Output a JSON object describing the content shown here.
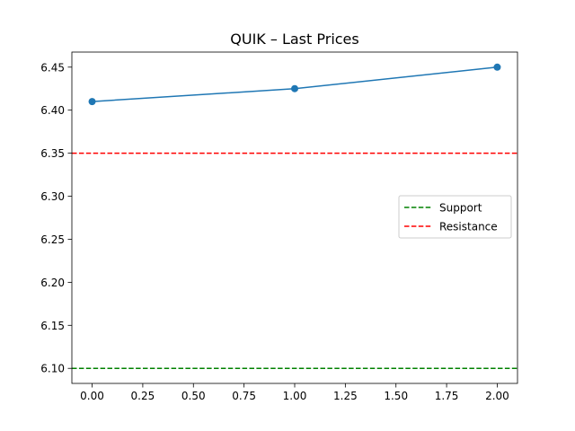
{
  "chart_data": {
    "type": "line",
    "title": "QUIK – Last Prices",
    "xlabel": "",
    "ylabel": "",
    "xlim": [
      -0.1,
      2.1
    ],
    "ylim": [
      6.0825,
      6.4675
    ],
    "x_ticks": [
      "0.00",
      "0.25",
      "0.50",
      "0.75",
      "1.00",
      "1.25",
      "1.50",
      "1.75",
      "2.00"
    ],
    "x_tick_values": [
      0,
      0.25,
      0.5,
      0.75,
      1.0,
      1.25,
      1.5,
      1.75,
      2.0
    ],
    "y_ticks": [
      "6.10",
      "6.15",
      "6.20",
      "6.25",
      "6.30",
      "6.35",
      "6.40",
      "6.45"
    ],
    "y_tick_values": [
      6.1,
      6.15,
      6.2,
      6.25,
      6.3,
      6.35,
      6.4,
      6.45
    ],
    "grid": false,
    "series": [
      {
        "x": [
          0,
          1,
          2
        ],
        "values": [
          6.41,
          6.425,
          6.45
        ],
        "color": "#1f77b4",
        "marker": "circle"
      }
    ],
    "hlines": [
      {
        "name": "Support",
        "y": 6.1,
        "color": "#008000",
        "style": "dashed"
      },
      {
        "name": "Resistance",
        "y": 6.35,
        "color": "#ff0000",
        "style": "dashed"
      }
    ],
    "legend": {
      "placement": "center-right",
      "entries": [
        "Support",
        "Resistance"
      ]
    }
  }
}
